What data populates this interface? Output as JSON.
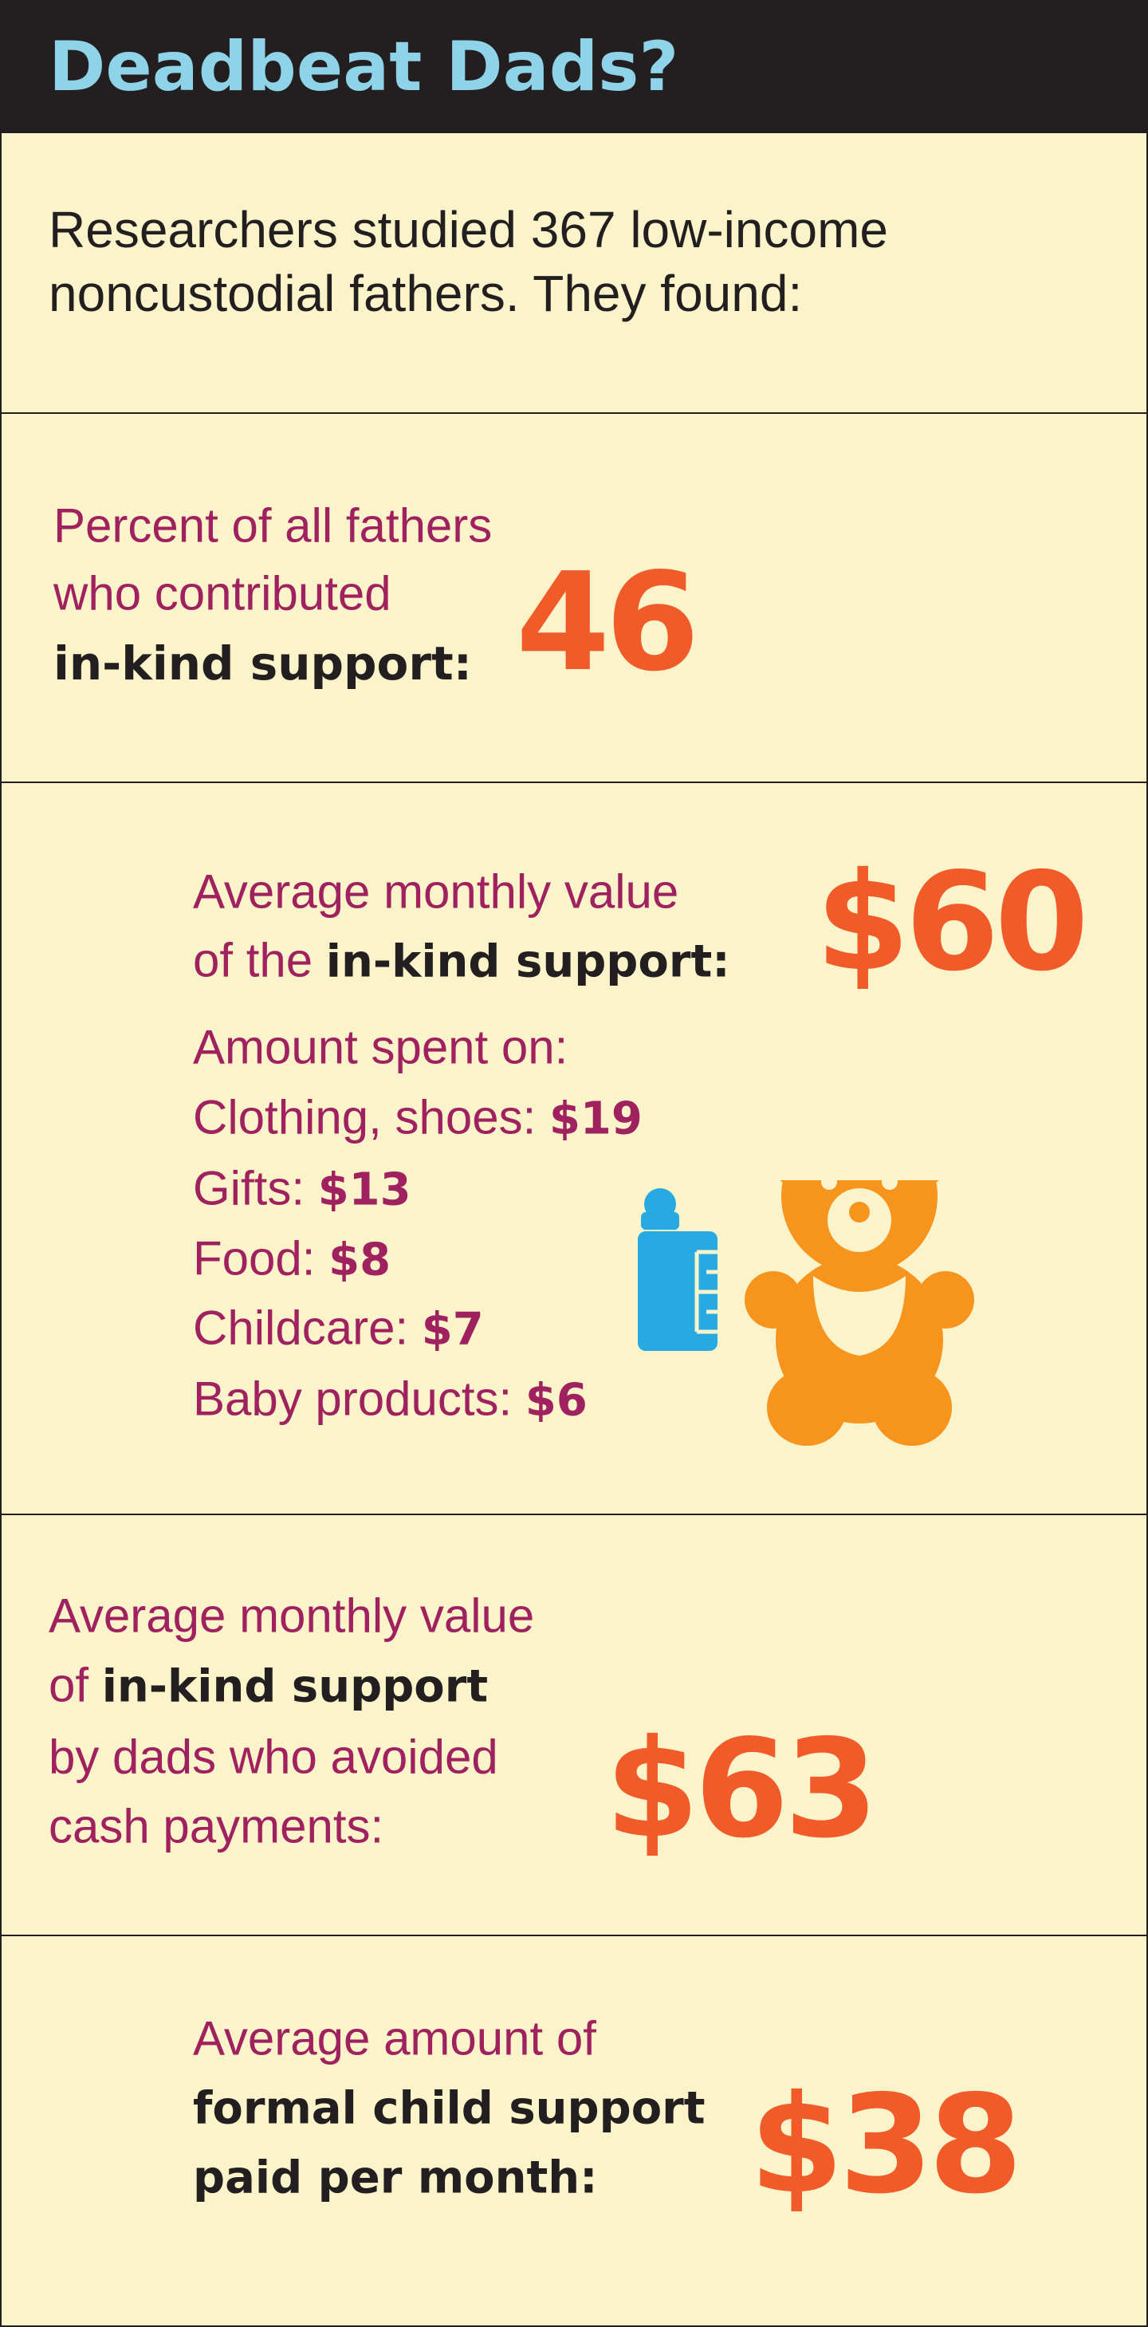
{
  "header": {
    "title": "Deadbeat Dads?"
  },
  "intro": [
    "Researchers studied 367 low-income",
    "noncustodial fathers. They found:"
  ],
  "sections": [
    {
      "label": [
        "Percent of all fathers",
        "who contributed",
        "in-kind support:"
      ],
      "value": "46"
    },
    {
      "label": [
        "Average monthly value",
        "of the",
        "in-kind support:"
      ],
      "value": "$60",
      "breakdown_title": "Amount spent on:",
      "items": [
        {
          "label": "Clothing, shoes:",
          "value": "$19"
        },
        {
          "label": "Gifts:",
          "value": "$13"
        },
        {
          "label": "Food:",
          "value": "$8"
        },
        {
          "label": "Childcare:",
          "value": "$7"
        },
        {
          "label": "Baby products:",
          "value": "$6"
        }
      ]
    },
    {
      "label": [
        "Average monthly value",
        "of",
        "in-kind support",
        "by dads who avoided",
        "cash payments:"
      ],
      "value": "$63"
    },
    {
      "label": [
        "Average amount of",
        "formal child support",
        "paid per month:"
      ],
      "value": "$38"
    }
  ]
}
